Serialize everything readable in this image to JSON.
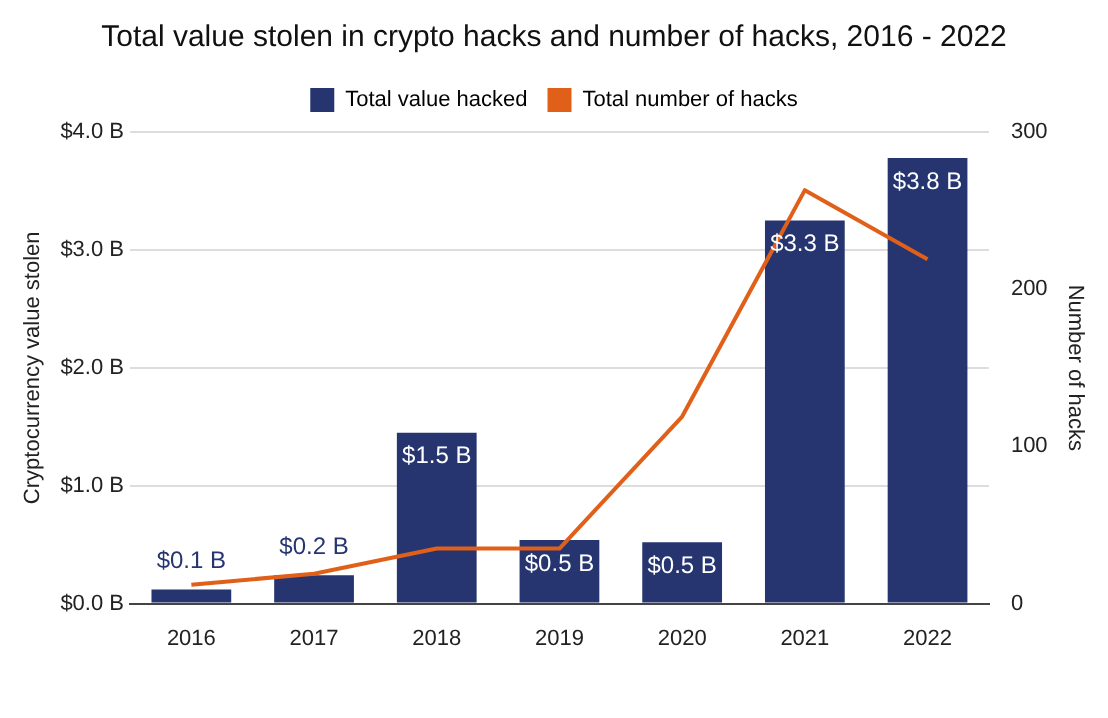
{
  "chart_data": {
    "type": "bar",
    "title": "Total value stolen in crypto hacks and number of hacks, 2016 - 2022",
    "categories": [
      "2016",
      "2017",
      "2018",
      "2019",
      "2020",
      "2021",
      "2022"
    ],
    "ylabel": "Cryptocurrency value stolen",
    "y2label": "Number of hacks",
    "series": [
      {
        "name": "Total value hacked",
        "color": "#263570",
        "values": [
          0.12,
          0.24,
          1.45,
          0.54,
          0.52,
          3.25,
          3.78
        ],
        "value_labels": [
          "$0.1 B",
          "$0.2 B",
          "$1.5 B",
          "$0.5 B",
          "$0.5 B",
          "$3.3 B",
          "$3.8 B"
        ]
      },
      {
        "name": "Total number of hacks",
        "type": "line",
        "axis": "y2",
        "color": "#e0601a",
        "values": [
          12,
          19,
          35,
          35,
          119,
          263,
          219
        ]
      }
    ],
    "ylim": [
      0,
      4
    ],
    "yticks": [
      {
        "value": 0,
        "label": "$0.0 B"
      },
      {
        "value": 1,
        "label": "$1.0 B"
      },
      {
        "value": 2,
        "label": "$2.0 B"
      },
      {
        "value": 3,
        "label": "$3.0 B"
      },
      {
        "value": 4,
        "label": "$4.0 B"
      }
    ],
    "y2lim": [
      0,
      300
    ],
    "y2ticks": [
      0,
      100,
      200,
      300
    ],
    "grid": "y",
    "legend": "top",
    "marker": "none"
  }
}
